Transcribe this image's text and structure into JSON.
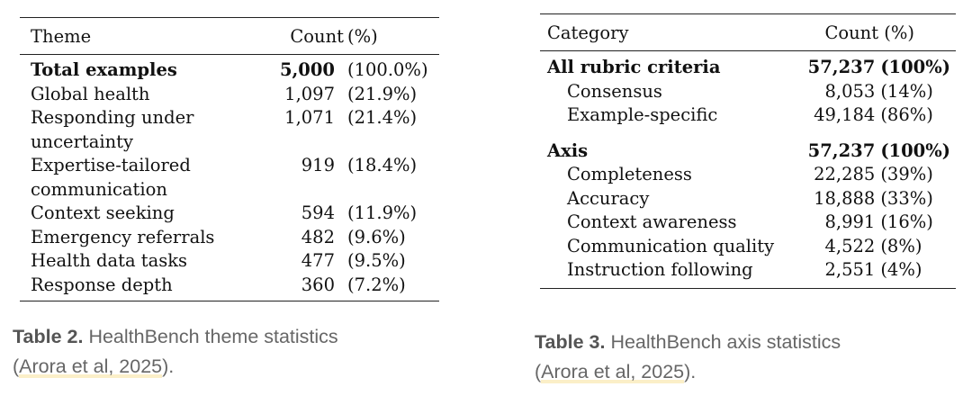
{
  "table2": {
    "headers": {
      "name": "Theme",
      "count": "Count",
      "pct": "(%)"
    },
    "total": {
      "name": "Total examples",
      "count": "5,000",
      "pct": "(100.0%)"
    },
    "rows": [
      {
        "name_line1": "Global health",
        "name_line2": "",
        "count": "1,097",
        "pct": "(21.9%)"
      },
      {
        "name_line1": "Responding under",
        "name_line2": "uncertainty",
        "count": "1,071",
        "pct": "(21.4%)"
      },
      {
        "name_line1": "Expertise-tailored",
        "name_line2": "communication",
        "count": "919",
        "pct": "(18.4%)"
      },
      {
        "name_line1": "Context seeking",
        "name_line2": "",
        "count": "594",
        "pct": "(11.9%)"
      },
      {
        "name_line1": "Emergency referrals",
        "name_line2": "",
        "count": "482",
        "pct": "(9.6%)"
      },
      {
        "name_line1": "Health data tasks",
        "name_line2": "",
        "count": "477",
        "pct": "(9.5%)"
      },
      {
        "name_line1": "Response depth",
        "name_line2": "",
        "count": "360",
        "pct": "(7.2%)"
      }
    ],
    "caption": {
      "label": "Table 2.",
      "text": " HealthBench theme statistics",
      "open": "(",
      "cite": "Arora et al, 2025",
      "close": ")."
    }
  },
  "table3": {
    "headers": {
      "name": "Category",
      "count": "Count (%)"
    },
    "groups": [
      {
        "name": "All rubric criteria",
        "count": "57,237",
        "pct": "(100%)",
        "items": [
          {
            "name": "Consensus",
            "count": "8,053",
            "pct": "(14%)"
          },
          {
            "name": "Example-specific",
            "count": "49,184",
            "pct": "(86%)"
          }
        ]
      },
      {
        "name": "Axis",
        "count": "57,237",
        "pct": "(100%)",
        "items": [
          {
            "name": "Completeness",
            "count": "22,285",
            "pct": "(39%)"
          },
          {
            "name": "Accuracy",
            "count": "18,888",
            "pct": "(33%)"
          },
          {
            "name": "Context awareness",
            "count": "8,991",
            "pct": "(16%)"
          },
          {
            "name": "Communication quality",
            "count": "4,522",
            "pct": "(8%)"
          },
          {
            "name": "Instruction following",
            "count": "2,551",
            "pct": "(4%)"
          }
        ]
      }
    ],
    "caption": {
      "label": "Table 3.",
      "text": " HealthBench axis statistics",
      "open": "(",
      "cite": "Arora et al, 2025",
      "close": ")."
    }
  }
}
